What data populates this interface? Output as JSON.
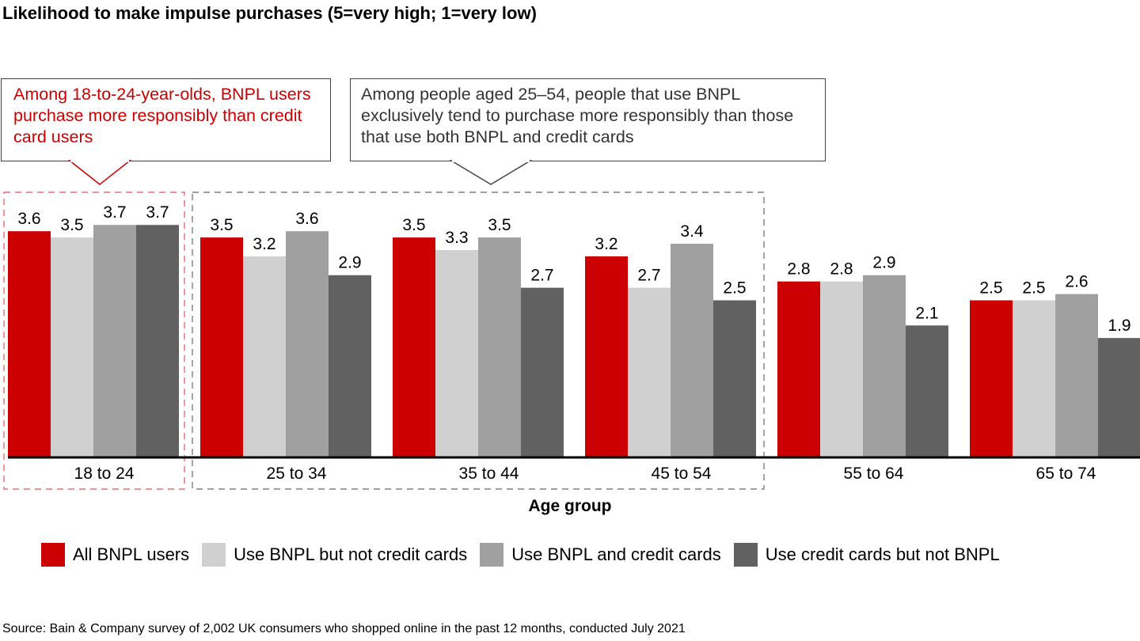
{
  "chart_data": {
    "type": "bar",
    "title": "Likelihood to make impulse purchases (5=very high; 1=very low)",
    "xlabel": "Age group",
    "ylabel": "",
    "ylim": [
      0,
      3.7
    ],
    "grid": false,
    "legend_position": "bottom",
    "categories": [
      "18 to 24",
      "25 to 34",
      "35 to 44",
      "45 to 54",
      "55 to 64",
      "65 to 74"
    ],
    "series": [
      {
        "name": "All BNPL users",
        "color": "#cc0000",
        "values": [
          3.6,
          3.5,
          3.5,
          3.2,
          2.8,
          2.5
        ]
      },
      {
        "name": "Use BNPL but not credit cards",
        "color": "#d0d0d0",
        "values": [
          3.5,
          3.2,
          3.3,
          2.7,
          2.8,
          2.5
        ]
      },
      {
        "name": "Use BNPL and credit cards",
        "color": "#a0a0a0",
        "values": [
          3.7,
          3.6,
          3.5,
          3.4,
          2.9,
          2.6
        ]
      },
      {
        "name": "Use credit cards but not BNPL",
        "color": "#616161",
        "values": [
          3.7,
          2.9,
          2.7,
          2.5,
          2.1,
          1.9
        ]
      }
    ],
    "annotations": [
      {
        "text": "Among 18-to-24-year-olds, BNPL users purchase more responsibly than credit card users",
        "color": "#cc0000",
        "highlights": [
          "18 to 24"
        ]
      },
      {
        "text": "Among people aged 25–54, people that use BNPL exclusively tend to purchase more responsibly than those that use both BNPL and credit cards",
        "color": "#444444",
        "highlights": [
          "25 to 34",
          "35 to 44",
          "45 to 54"
        ]
      }
    ]
  },
  "callouts": {
    "red": "Among 18-to-24-year-olds, BNPL users purchase more responsibly than credit card users",
    "gray": "Among people aged 25–54, people that use BNPL exclusively tend to purchase more responsibly than those that use both BNPL and credit cards"
  },
  "source": "Source: Bain & Company survey of 2,002 UK consumers who shopped online in the past 12 months, conducted July 2021"
}
